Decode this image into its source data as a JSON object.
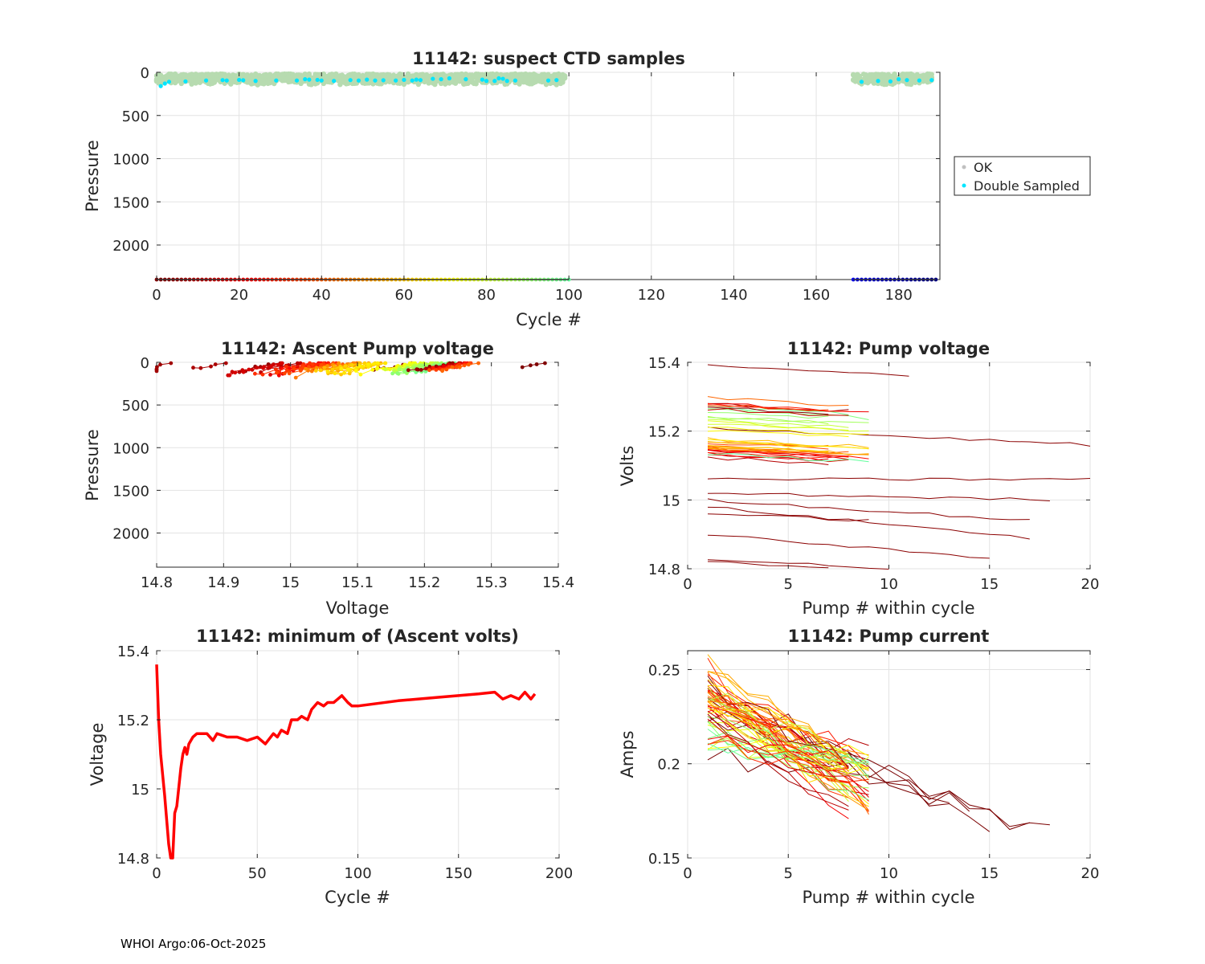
{
  "footer": "WHOI Argo:06-Oct-2025",
  "chart_data": [
    {
      "type": "scatter",
      "title": "11142: suspect CTD samples",
      "xlabel": "Cycle #",
      "ylabel": "Pressure",
      "xlim": [
        0,
        190
      ],
      "ylim": [
        0,
        2400
      ],
      "y_reversed": true,
      "xticks": [
        0,
        20,
        40,
        60,
        80,
        100,
        120,
        140,
        160,
        180
      ],
      "yticks": [
        0,
        500,
        1000,
        1500,
        2000
      ],
      "legend": {
        "position": "right",
        "entries": [
          {
            "label": "OK",
            "color": "#c0c0c0"
          },
          {
            "label": "Double Sampled",
            "color": "#00e5ff"
          }
        ]
      },
      "cycle_ranges": [
        [
          0,
          100
        ],
        [
          169,
          189
        ]
      ],
      "ok_pressure_range": [
        0,
        130
      ],
      "double_sampled": [
        [
          1,
          160
        ],
        [
          2,
          130
        ],
        [
          3,
          110
        ],
        [
          7,
          105
        ],
        [
          12,
          95
        ],
        [
          16,
          90
        ],
        [
          17,
          95
        ],
        [
          20,
          88
        ],
        [
          21,
          92
        ],
        [
          24,
          100
        ],
        [
          29,
          95
        ],
        [
          34,
          95
        ],
        [
          36,
          80
        ],
        [
          37,
          85
        ],
        [
          39,
          88
        ],
        [
          40,
          95
        ],
        [
          43,
          100
        ],
        [
          47,
          90
        ],
        [
          49,
          95
        ],
        [
          51,
          85
        ],
        [
          53,
          95
        ],
        [
          55,
          92
        ],
        [
          58,
          95
        ],
        [
          60,
          88
        ],
        [
          62,
          95
        ],
        [
          63,
          85
        ],
        [
          64,
          90
        ],
        [
          67,
          75
        ],
        [
          69,
          80
        ],
        [
          71,
          70
        ],
        [
          75,
          80
        ],
        [
          79,
          85
        ],
        [
          80,
          100
        ],
        [
          82,
          100
        ],
        [
          83,
          70
        ],
        [
          84,
          75
        ],
        [
          85,
          100
        ],
        [
          87,
          95
        ],
        [
          95,
          95
        ],
        [
          97,
          90
        ],
        [
          171,
          110
        ],
        [
          175,
          100
        ],
        [
          178,
          105
        ],
        [
          180,
          80
        ],
        [
          182,
          90
        ],
        [
          185,
          95
        ],
        [
          188,
          90
        ]
      ]
    },
    {
      "type": "line",
      "title": "11142: Ascent Pump voltage",
      "xlabel": "Voltage",
      "ylabel": "Pressure",
      "xlim": [
        14.8,
        15.4
      ],
      "ylim": [
        0,
        2400
      ],
      "y_reversed": true,
      "xticks": [
        14.8,
        14.9,
        15,
        15.1,
        15.2,
        15.3,
        15.4
      ],
      "yticks": [
        0,
        500,
        1000,
        1500,
        2000
      ],
      "description": "Pump events per cycle plotted as pressure vs voltage, colored by cycle; voltages cluster 14.80-15.39, pressures 0-180"
    },
    {
      "type": "line",
      "title": "11142: Pump voltage",
      "xlabel": "Pump # within cycle",
      "ylabel": "Volts",
      "xlim": [
        0,
        20
      ],
      "ylim": [
        14.8,
        15.4
      ],
      "xticks": [
        0,
        5,
        10,
        15,
        20
      ],
      "yticks": [
        14.8,
        15,
        15.2,
        15.4
      ],
      "series_start_values": [
        15.39,
        15.21,
        15.06,
        15.02,
        15.0,
        14.98,
        14.96,
        14.9,
        14.83,
        14.82,
        15.15,
        15.14,
        15.17,
        15.19,
        15.22,
        15.23,
        15.25,
        15.28,
        15.3,
        15.31
      ]
    },
    {
      "type": "line",
      "title": "11142: minimum of (Ascent volts)",
      "xlabel": "Cycle #",
      "ylabel": "Voltage",
      "xlim": [
        0,
        200
      ],
      "ylim": [
        14.8,
        15.4
      ],
      "xticks": [
        0,
        50,
        100,
        150,
        200
      ],
      "yticks": [
        14.8,
        15,
        15.2,
        15.4
      ],
      "x": [
        0,
        1,
        2,
        4,
        6,
        7,
        8,
        9,
        10,
        12,
        13,
        14,
        15,
        16,
        18,
        20,
        25,
        28,
        30,
        35,
        40,
        45,
        50,
        54,
        58,
        60,
        62,
        65,
        67,
        70,
        72,
        75,
        77,
        80,
        83,
        85,
        88,
        90,
        92,
        95,
        97,
        100,
        120,
        140,
        160,
        168,
        172,
        176,
        180,
        183,
        186,
        188
      ],
      "values": [
        15.36,
        15.2,
        15.1,
        14.98,
        14.84,
        14.8,
        14.8,
        14.93,
        14.95,
        15.06,
        15.1,
        15.12,
        15.1,
        15.13,
        15.15,
        15.16,
        15.16,
        15.14,
        15.16,
        15.15,
        15.15,
        15.14,
        15.15,
        15.13,
        15.16,
        15.15,
        15.17,
        15.16,
        15.2,
        15.2,
        15.21,
        15.2,
        15.23,
        15.25,
        15.24,
        15.25,
        15.25,
        15.26,
        15.27,
        15.25,
        15.24,
        15.24,
        15.255,
        15.265,
        15.275,
        15.28,
        15.26,
        15.27,
        15.26,
        15.28,
        15.26,
        15.275
      ]
    },
    {
      "type": "line",
      "title": "11142: Pump current",
      "xlabel": "Pump # within cycle",
      "ylabel": "Amps",
      "xlim": [
        0,
        20
      ],
      "ylim": [
        0.15,
        0.26
      ],
      "xticks": [
        0,
        5,
        10,
        15,
        20
      ],
      "yticks": [
        0.15,
        0.2,
        0.25
      ],
      "description": "Per-cycle pump current traces, starting ~0.21-0.255 A at pump 1 and declining to ~0.16-0.20 A; colored by cycle"
    }
  ]
}
